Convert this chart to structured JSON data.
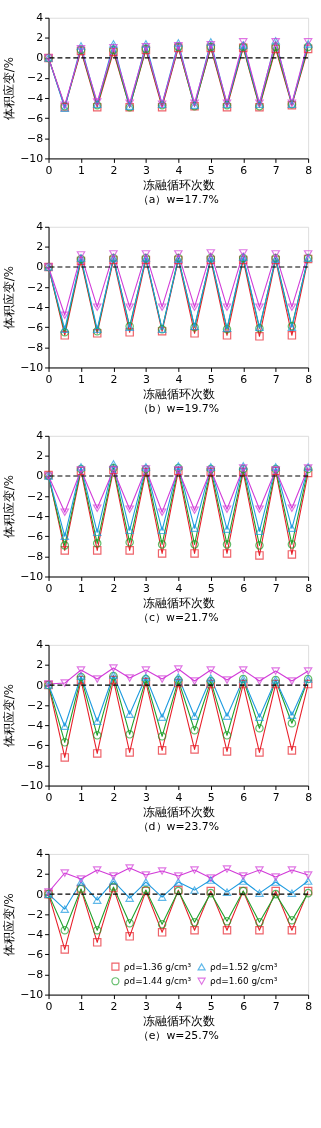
{
  "chart_data": [
    {
      "type": "line",
      "title": "（a）w=17.7%",
      "xlabel": "冻融循环次数",
      "ylabel": "体积应变/%",
      "x": [
        0,
        0.5,
        1,
        1.5,
        2,
        2.5,
        3,
        3.5,
        4,
        4.5,
        5,
        5.5,
        6,
        6.5,
        7,
        7.5,
        8
      ],
      "xlim": [
        0,
        8
      ],
      "xticks": [
        0,
        1,
        2,
        3,
        4,
        5,
        6,
        7,
        8
      ],
      "ylim": [
        -10,
        4
      ],
      "yticks": [
        -10,
        -8,
        -6,
        -4,
        -2,
        0,
        2,
        4
      ],
      "legend": false,
      "ref_lines": [
        {
          "axis": "y",
          "value": 0,
          "color": "#000000",
          "line_style": "dashed"
        }
      ],
      "series": [
        {
          "color": "#e8202a",
          "marker": "square",
          "values": [
            0,
            -4.9,
            0.7,
            -4.9,
            0.6,
            -4.9,
            0.8,
            -4.9,
            1.0,
            -4.8,
            1.0,
            -4.9,
            1.0,
            -4.9,
            0.9,
            -4.7,
            0.9
          ]
        },
        {
          "color": "#1fa02a",
          "marker": "circle",
          "values": [
            0,
            -4.8,
            0.8,
            -4.7,
            0.8,
            -4.9,
            0.9,
            -4.7,
            1.1,
            -4.8,
            1.1,
            -4.7,
            1.1,
            -4.8,
            1.1,
            -4.6,
            1.1
          ]
        },
        {
          "color": "#1e9be0",
          "marker": "triangle",
          "values": [
            0,
            -5.0,
            1.2,
            -4.6,
            1.4,
            -4.8,
            1.4,
            -4.6,
            1.5,
            -4.7,
            1.6,
            -4.6,
            1.3,
            -4.6,
            1.7,
            -4.6,
            1.4
          ]
        },
        {
          "color": "#d23cd8",
          "marker": "triangle-down",
          "values": [
            0,
            -4.7,
            0.9,
            -4.4,
            1.0,
            -4.5,
            1.1,
            -4.6,
            1.2,
            -4.5,
            1.3,
            -4.5,
            1.6,
            -4.5,
            1.6,
            -4.5,
            1.6
          ]
        }
      ]
    },
    {
      "type": "line",
      "title": "（b）w=19.7%",
      "xlabel": "冻融循环次数",
      "ylabel": "体积应变/%",
      "x": [
        0,
        0.5,
        1,
        1.5,
        2,
        2.5,
        3,
        3.5,
        4,
        4.5,
        5,
        5.5,
        6,
        6.5,
        7,
        7.5,
        8
      ],
      "xlim": [
        0,
        8
      ],
      "xticks": [
        0,
        1,
        2,
        3,
        4,
        5,
        6,
        7,
        8
      ],
      "ylim": [
        -10,
        4
      ],
      "yticks": [
        -10,
        -8,
        -6,
        -4,
        -2,
        0,
        2,
        4
      ],
      "legend": false,
      "ref_lines": [
        {
          "axis": "y",
          "value": 0,
          "color": "#000000",
          "line_style": "dashed"
        }
      ],
      "series": [
        {
          "color": "#e8202a",
          "marker": "square",
          "values": [
            0,
            -6.8,
            0.6,
            -6.6,
            0.7,
            -6.5,
            0.7,
            -6.4,
            0.7,
            -6.6,
            0.7,
            -6.8,
            0.7,
            -6.9,
            0.7,
            -6.8,
            0.8
          ]
        },
        {
          "color": "#1fa02a",
          "marker": "circle",
          "values": [
            0,
            -6.5,
            0.8,
            -6.4,
            0.9,
            -5.9,
            0.9,
            -6.2,
            0.9,
            -6.0,
            0.9,
            -6.2,
            0.9,
            -6.1,
            0.9,
            -5.9,
            0.9
          ]
        },
        {
          "color": "#1e9be0",
          "marker": "triangle",
          "values": [
            0,
            -6.2,
            0.9,
            -6.2,
            0.9,
            -6.0,
            0.9,
            -6.2,
            0.8,
            -5.9,
            0.9,
            -6.1,
            1.0,
            -6.0,
            0.8,
            -6.0,
            0.9
          ]
        },
        {
          "color": "#d23cd8",
          "marker": "triangle-down",
          "values": [
            0,
            -4.8,
            1.2,
            -4.0,
            1.3,
            -4.0,
            1.3,
            -4.0,
            1.3,
            -4.0,
            1.4,
            -4.0,
            1.4,
            -4.0,
            1.3,
            -4.0,
            1.3
          ]
        }
      ]
    },
    {
      "type": "line",
      "title": "（c）w=21.7%",
      "xlabel": "冻融循环次数",
      "ylabel": "体积应变/%",
      "x": [
        0,
        0.5,
        1,
        1.5,
        2,
        2.5,
        3,
        3.5,
        4,
        4.5,
        5,
        5.5,
        6,
        6.5,
        7,
        7.5,
        8
      ],
      "xlim": [
        0,
        8
      ],
      "xticks": [
        0,
        1,
        2,
        3,
        4,
        5,
        6,
        7,
        8
      ],
      "ylim": [
        -10,
        4
      ],
      "yticks": [
        -10,
        -8,
        -6,
        -4,
        -2,
        0,
        2,
        4
      ],
      "legend": false,
      "ref_lines": [
        {
          "axis": "y",
          "value": 0,
          "color": "#000000",
          "line_style": "dashed"
        }
      ],
      "series": [
        {
          "color": "#e8202a",
          "marker": "square",
          "values": [
            0.1,
            -7.4,
            0.5,
            -7.4,
            0.6,
            -7.4,
            0.4,
            -7.7,
            0.5,
            -7.7,
            0.4,
            -7.7,
            0.4,
            -7.9,
            0.5,
            -7.8,
            0.3
          ]
        },
        {
          "color": "#1fa02a",
          "marker": "circle",
          "values": [
            0,
            -6.9,
            0.7,
            -6.7,
            0.8,
            -6.6,
            0.7,
            -6.8,
            0.8,
            -6.8,
            0.7,
            -6.8,
            0.7,
            -6.9,
            0.7,
            -6.8,
            0.7
          ]
        },
        {
          "color": "#1e9be0",
          "marker": "triangle",
          "values": [
            0,
            -6.0,
            0.9,
            -5.6,
            1.2,
            -5.4,
            0.9,
            -5.4,
            1.0,
            -5.2,
            0.9,
            -5.3,
            1.0,
            -5.5,
            0.9,
            -5.2,
            0.9
          ]
        },
        {
          "color": "#d23cd8",
          "marker": "triangle-down",
          "values": [
            0,
            -3.6,
            0.6,
            -3.2,
            0.6,
            -3.3,
            0.7,
            -3.6,
            0.6,
            -3.4,
            0.6,
            -3.3,
            0.8,
            -3.3,
            0.6,
            -3.2,
            0.8
          ]
        }
      ]
    },
    {
      "type": "line",
      "title": "（d）w=23.7%",
      "xlabel": "冻融循环次数",
      "ylabel": "体积应变/%",
      "x": [
        0,
        0.5,
        1,
        1.5,
        2,
        2.5,
        3,
        3.5,
        4,
        4.5,
        5,
        5.5,
        6,
        6.5,
        7,
        7.5,
        8
      ],
      "xlim": [
        0,
        8
      ],
      "xticks": [
        0,
        1,
        2,
        3,
        4,
        5,
        6,
        7,
        8
      ],
      "ylim": [
        -10,
        4
      ],
      "yticks": [
        -10,
        -8,
        -6,
        -4,
        -2,
        0,
        2,
        4
      ],
      "legend": false,
      "ref_lines": [
        {
          "axis": "y",
          "value": 0,
          "color": "#000000",
          "line_style": "dashed"
        }
      ],
      "series": [
        {
          "color": "#e8202a",
          "marker": "square",
          "values": [
            0,
            -7.2,
            0.5,
            -6.8,
            0.5,
            -6.7,
            0.3,
            -6.5,
            0.2,
            -6.4,
            0.1,
            -6.6,
            0.1,
            -6.7,
            0.1,
            -6.5,
            0.1
          ]
        },
        {
          "color": "#1fa02a",
          "marker": "circle",
          "values": [
            0,
            -5.7,
            0.8,
            -5.0,
            0.9,
            -4.9,
            0.6,
            -5.1,
            0.5,
            -4.5,
            0.4,
            -5.0,
            0.6,
            -4.3,
            0.5,
            -3.8,
            0.6
          ]
        },
        {
          "color": "#1e9be0",
          "marker": "triangle",
          "values": [
            0,
            -4.1,
            0.9,
            -3.6,
            1.0,
            -2.9,
            0.8,
            -3.2,
            0.8,
            -3.1,
            0.7,
            -3.1,
            0.6,
            -3.2,
            0.5,
            -3.0,
            0.6
          ]
        },
        {
          "color": "#d23cd8",
          "marker": "triangle-down",
          "values": [
            0.1,
            0.2,
            1.5,
            0.6,
            1.7,
            0.7,
            1.5,
            0.6,
            1.6,
            0.4,
            1.5,
            0.5,
            1.5,
            0.4,
            1.4,
            0.4,
            1.4
          ]
        }
      ]
    },
    {
      "type": "line",
      "title": "（e）w=25.7%",
      "xlabel": "冻融循环次数",
      "ylabel": "体积应变/%",
      "x": [
        0,
        0.5,
        1,
        1.5,
        2,
        2.5,
        3,
        3.5,
        4,
        4.5,
        5,
        5.5,
        6,
        6.5,
        7,
        7.5,
        8
      ],
      "xlim": [
        0,
        8
      ],
      "xticks": [
        0,
        1,
        2,
        3,
        4,
        5,
        6,
        7,
        8
      ],
      "ylim": [
        -10,
        4
      ],
      "yticks": [
        -10,
        -8,
        -6,
        -4,
        -2,
        0,
        2,
        4
      ],
      "legend": "bottom right",
      "ref_lines": [
        {
          "axis": "y",
          "value": 0,
          "color": "#000000",
          "line_style": "dashed"
        }
      ],
      "series": [
        {
          "name": "ρd=1.36 g/cm³",
          "color": "#e8202a",
          "marker": "square",
          "values": [
            0,
            -5.5,
            0.5,
            -4.8,
            0.6,
            -4.2,
            0.3,
            -3.8,
            0.4,
            -3.6,
            0.3,
            -3.6,
            0.3,
            -3.6,
            0.3,
            -3.6,
            0.3
          ]
        },
        {
          "name": "ρd=1.44 g/cm³",
          "color": "#1fa02a",
          "marker": "circle",
          "values": [
            0,
            -3.6,
            0.5,
            -3.6,
            0.7,
            -2.9,
            0.4,
            -3.0,
            0.3,
            -2.8,
            0.1,
            -2.7,
            0.3,
            -2.8,
            0,
            -2.6,
            0.1
          ]
        },
        {
          "name": "ρd=1.52 g/cm³",
          "color": "#1e9be0",
          "marker": "triangle",
          "values": [
            0,
            -1.5,
            1.2,
            -0.6,
            1.3,
            -0.4,
            1.2,
            -0.3,
            1.2,
            0.4,
            1.4,
            0.2,
            1.3,
            0.1,
            1.2,
            0.1,
            1.3
          ]
        },
        {
          "name": "ρd=1.60 g/cm³",
          "color": "#d23cd8",
          "marker": "triangle-down",
          "values": [
            0.2,
            2.1,
            1.5,
            2.4,
            1.8,
            2.6,
            1.9,
            2.3,
            1.8,
            2.4,
            1.6,
            2.5,
            1.8,
            2.4,
            1.7,
            2.4,
            1.9
          ]
        }
      ]
    }
  ]
}
